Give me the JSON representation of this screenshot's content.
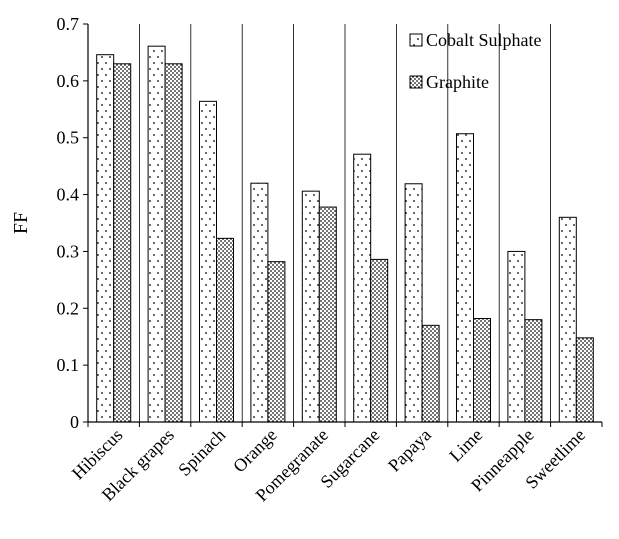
{
  "chart_data": {
    "type": "bar",
    "title": "",
    "xlabel": "",
    "ylabel": "FF",
    "ylim": [
      0,
      0.7
    ],
    "yticks": [
      "0",
      "0.1",
      "0.2",
      "0.3",
      "0.4",
      "0.5",
      "0.6",
      "0.7"
    ],
    "grid": "vertical category separators",
    "legend_position": "top-right",
    "categories": [
      "Hibiscus",
      "Black grapes",
      "Spinach",
      "Orange",
      "Pomegranate",
      "Sugarcane",
      "Papaya",
      "Lime",
      "Pinneapple",
      "Sweetlime"
    ],
    "series": [
      {
        "name": "Cobalt Sulphate",
        "pattern": "dots-sparse",
        "values": [
          0.646,
          0.661,
          0.564,
          0.42,
          0.406,
          0.471,
          0.419,
          0.507,
          0.3,
          0.36
        ]
      },
      {
        "name": "Graphite",
        "pattern": "dots-dense",
        "values": [
          0.63,
          0.63,
          0.323,
          0.282,
          0.378,
          0.286,
          0.17,
          0.182,
          0.18,
          0.148
        ]
      }
    ]
  }
}
